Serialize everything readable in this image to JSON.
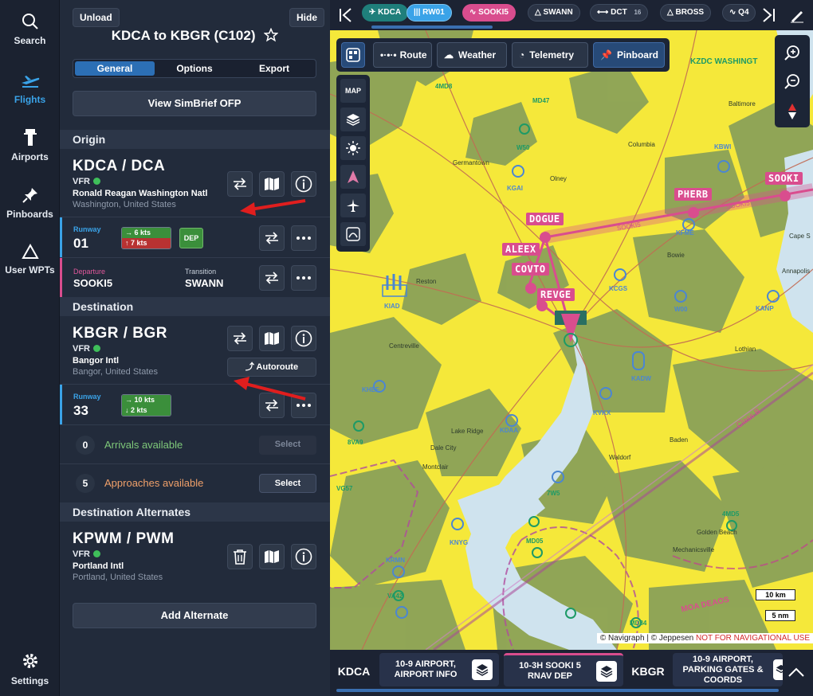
{
  "rail": {
    "search": "Search",
    "flights": "Flights",
    "airports": "Airports",
    "pinboards": "Pinboards",
    "user_wpts": "User WPTs",
    "settings": "Settings"
  },
  "panel": {
    "unload": "Unload",
    "hide": "Hide",
    "title": "KDCA to KBGR (C102)",
    "tabs": [
      "General",
      "Options",
      "Export"
    ],
    "view_ofp": "View SimBrief OFP",
    "origin_header": "Origin",
    "origin": {
      "code": "KDCA / DCA",
      "rules": "VFR",
      "name": "Ronald Reagan Washington Natl",
      "location": "Washington, United States",
      "runway_label": "Runway",
      "runway": "01",
      "wind_top": "→ 6 kts",
      "wind_bottom": "↑ 7 kts",
      "dep_tag": "DEP",
      "departure_label": "Departure",
      "departure": "SOOKI5",
      "transition_label": "Transition",
      "transition": "SWANN"
    },
    "destination_header": "Destination",
    "destination": {
      "code": "KBGR / BGR",
      "rules": "VFR",
      "name": "Bangor Intl",
      "location": "Bangor, United States",
      "autoroute": "Autoroute",
      "runway_label": "Runway",
      "runway": "33",
      "wind_top": "→ 10 kts",
      "wind_bottom": "↓ 2 kts",
      "arrivals_count": "0",
      "arrivals_text": "Arrivals available",
      "approaches_count": "5",
      "approaches_text": "Approaches available",
      "select": "Select"
    },
    "alternates_header": "Destination Alternates",
    "alternate": {
      "code": "KPWM / PWM",
      "rules": "VFR",
      "name": "Portland Intl",
      "location": "Portland, United States"
    },
    "add_alternate": "Add Alternate"
  },
  "topbar": {
    "chips": [
      {
        "label": "KDCA",
        "bg": "#1f7f7b"
      },
      {
        "label": "RW01",
        "bg": "#3aa3e8"
      },
      {
        "label": "SOOKI5",
        "bg": "#d94d8e"
      },
      {
        "label": "SWANN",
        "bg": "#2b3446"
      },
      {
        "label": "DCT",
        "count": "16",
        "bg": "#2b3446"
      },
      {
        "label": "BROSS",
        "bg": "#2b3446"
      },
      {
        "label": "Q4",
        "bg": "#2b3446"
      }
    ]
  },
  "maptools": {
    "route": "Route",
    "weather": "Weather",
    "telemetry": "Telemetry",
    "pinboard": "Pinboard",
    "map": "MAP"
  },
  "map": {
    "waypoints": [
      "SOOKI",
      "PHERB",
      "DOGUE",
      "ALEEX",
      "COVTO",
      "REVGE"
    ],
    "route_label": "SOOKI5",
    "places": [
      "Germantown",
      "Olney",
      "Columbia",
      "Baltimore",
      "Reston",
      "Bowie",
      "Annapolis",
      "Centreville",
      "Lake Ridge",
      "Dale City",
      "Montclair",
      "Waldorf",
      "Baden",
      "Lothian",
      "Golden Beach",
      "Mechanicsville",
      "Cape S"
    ],
    "airports": [
      "KBWI",
      "KGAI",
      "KFME",
      "KCGS",
      "W00",
      "KANP",
      "KIAD",
      "KHEF",
      "KADW",
      "KVKX",
      "KDAA",
      "KNYG",
      "KRMN",
      "4MD5",
      "8VA9",
      "VG57",
      "VA42",
      "MD05",
      "7W5",
      "MD84",
      "W50",
      "MD47",
      "4MD8"
    ],
    "airspace_label": "KZDC WASHINGT",
    "classb_label": "Class B",
    "moa_label": "MOA DEAOS",
    "scale_km": "10 km",
    "scale_nm": "5 nm",
    "credit_navigraph": "© Navigraph",
    "credit_jeppesen": "© Jeppesen",
    "credit_warning": "NOT FOR NAVIGATIONAL USE"
  },
  "bottombar": {
    "origin_code": "KDCA",
    "chart1": "10-9 AIRPORT,\nAIRPORT INFO",
    "chart2": "10-3H SOOKI 5\nRNAV DEP",
    "dest_code": "KBGR",
    "chart3": "10-9 AIRPORT,\nPARKING GATES &\nCOORDS"
  }
}
